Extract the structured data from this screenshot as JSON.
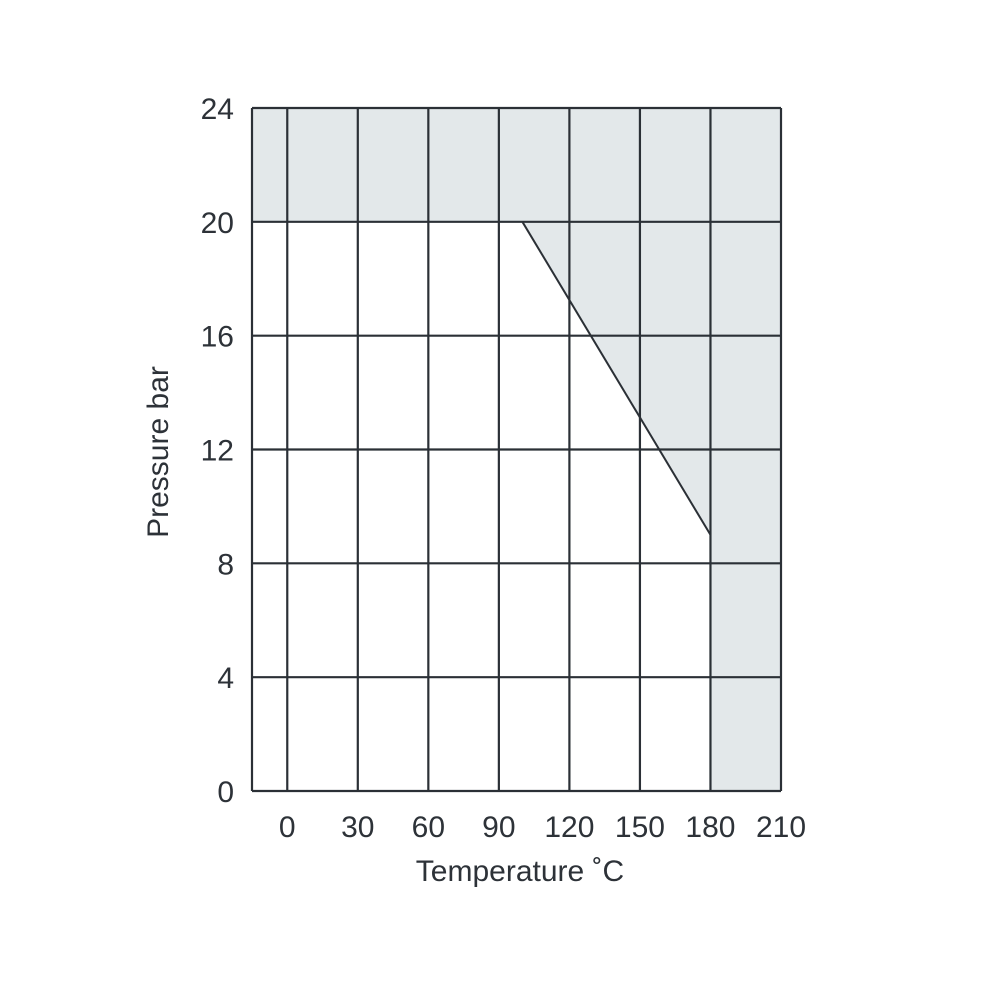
{
  "chart_data": {
    "type": "area",
    "xlabel": "Temperature ˚C",
    "ylabel": "Pressure bar",
    "xlim": [
      -15,
      210
    ],
    "ylim": [
      0,
      24
    ],
    "x_ticks": [
      0,
      30,
      60,
      90,
      120,
      150,
      180,
      210
    ],
    "x_tick_labels": [
      "0",
      "30",
      "60",
      "90",
      "120",
      "150",
      "180",
      "210"
    ],
    "y_ticks": [
      0,
      4,
      8,
      12,
      16,
      20,
      24
    ],
    "y_tick_labels": [
      "0",
      "4",
      "8",
      "12",
      "16",
      "20",
      "24"
    ],
    "grid": true,
    "series": [
      {
        "x": [
          -15,
          100,
          180
        ],
        "y": [
          20,
          20,
          9
        ]
      }
    ],
    "colors": {
      "fill": "#e3e8ea",
      "grid": "#2b3036",
      "line": "#2b3036",
      "text": "#2d3238"
    }
  }
}
